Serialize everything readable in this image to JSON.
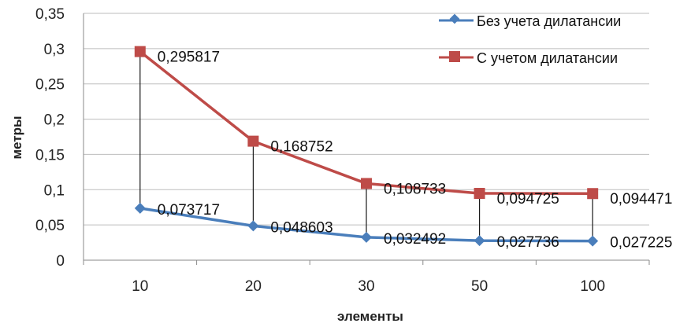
{
  "chart_data": {
    "type": "line",
    "categories": [
      "10",
      "20",
      "30",
      "50",
      "100"
    ],
    "series": [
      {
        "name": "Без учета дилатансии",
        "values": [
          0.073717,
          0.048603,
          0.032492,
          0.027736,
          0.027225
        ],
        "labels": [
          "0,073717",
          "0,048603",
          "0,032492",
          "0,027736",
          "0,027225"
        ],
        "color": "#4a7ebb",
        "marker": "diamond"
      },
      {
        "name": "С учетом дилатансии",
        "values": [
          0.295817,
          0.168752,
          0.108733,
          0.094725,
          0.094471
        ],
        "labels": [
          "0,295817",
          "0,168752",
          "0,108733",
          "0,094725",
          "0,094471"
        ],
        "color": "#be4b48",
        "marker": "square"
      }
    ],
    "title": "",
    "xlabel": "элементы",
    "ylabel": "метры",
    "ylim": [
      0,
      0.35
    ],
    "yticks": [
      "0",
      "0,05",
      "0,1",
      "0,15",
      "0,2",
      "0,25",
      "0,3",
      "0,35"
    ],
    "grid": true,
    "high_low_lines": true,
    "legend_position": "top-right"
  }
}
